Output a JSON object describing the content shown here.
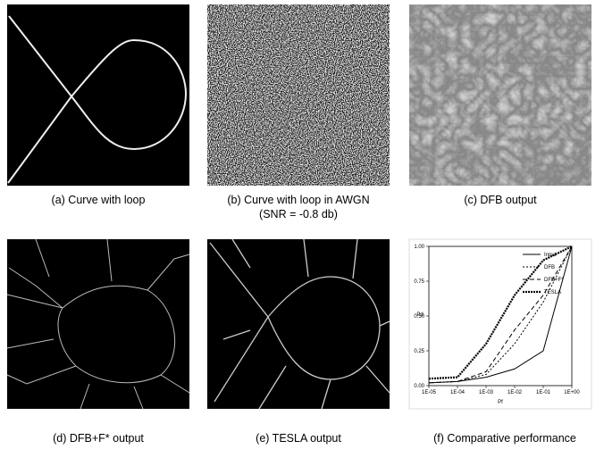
{
  "panels": [
    {
      "caption": "(a) Curve with loop"
    },
    {
      "caption": "(b) Curve with loop in AWGN",
      "caption_line2": "(SNR = -0.8 db)"
    },
    {
      "caption": "(c) DFB output"
    },
    {
      "caption": "(d) DFB+F* output"
    },
    {
      "caption": "(e) TESLA output"
    },
    {
      "caption": "(f) Comparative performance"
    }
  ],
  "chart_data": {
    "type": "line",
    "x_label": "Pf",
    "y_label": "Pd",
    "log_x": true,
    "x": [
      1e-05,
      0.0001,
      0.001,
      0.01,
      0.1,
      1
    ],
    "xlim": [
      1e-05,
      1
    ],
    "xticks": [
      {
        "value": 1e-05,
        "label": "1E-05"
      },
      {
        "value": 0.0001,
        "label": "1E-04"
      },
      {
        "value": 0.001,
        "label": "1E-03"
      },
      {
        "value": 0.01,
        "label": "1E-02"
      },
      {
        "value": 0.1,
        "label": "1E-01"
      },
      {
        "value": 1,
        "label": "1E+00"
      }
    ],
    "ylim": [
      0,
      1
    ],
    "yticks": [
      {
        "value": 0,
        "label": "0.00"
      },
      {
        "value": 0.25,
        "label": "0.25"
      },
      {
        "value": 0.5,
        "label": "0.50"
      },
      {
        "value": 0.75,
        "label": "0.75"
      },
      {
        "value": 1,
        "label": "1.00"
      }
    ],
    "legend": "top-right",
    "series": [
      {
        "name": "Input",
        "color": "#000000",
        "dash": "none",
        "values": [
          0.02,
          0.03,
          0.06,
          0.12,
          0.25,
          1.0
        ]
      },
      {
        "name": "DFB",
        "color": "#000000",
        "dash": "2,2",
        "values": [
          0.02,
          0.03,
          0.08,
          0.3,
          0.6,
          1.0
        ]
      },
      {
        "name": "DFB+F*",
        "color": "#000000",
        "dash": "5,3",
        "values": [
          0.02,
          0.03,
          0.1,
          0.4,
          0.65,
          1.0
        ]
      },
      {
        "name": "TESLA",
        "color": "#000000",
        "dash": "2,1",
        "values": [
          0.05,
          0.06,
          0.3,
          0.65,
          0.9,
          1.0
        ]
      }
    ]
  }
}
